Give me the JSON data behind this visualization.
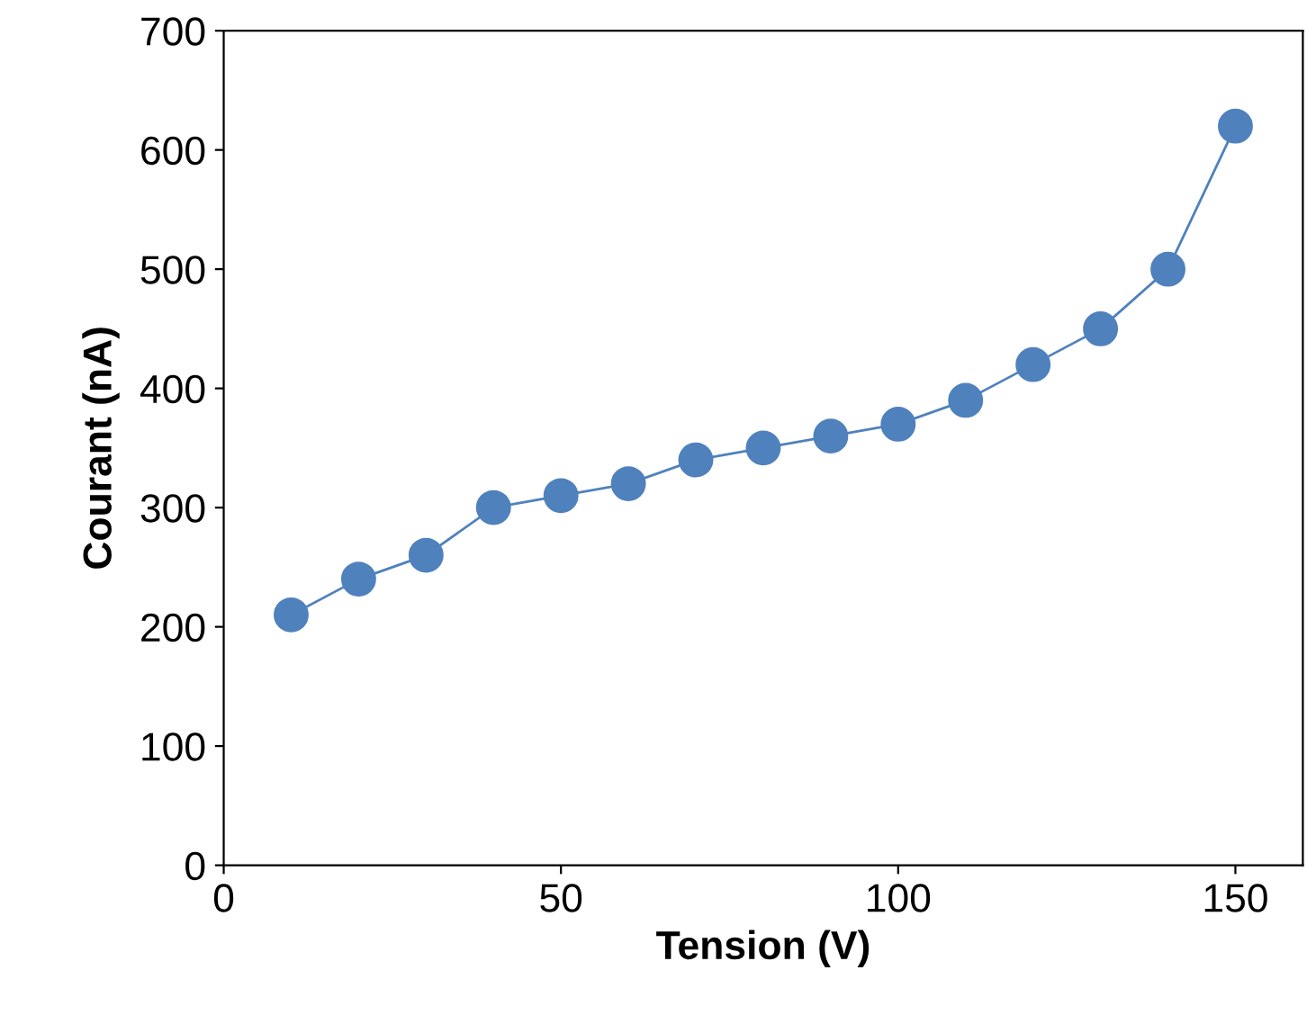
{
  "chart_data": {
    "type": "line",
    "xlabel": "Tension (V)",
    "ylabel": "Courant (nA)",
    "x": [
      10,
      20,
      30,
      40,
      50,
      60,
      70,
      80,
      90,
      100,
      110,
      120,
      130,
      140,
      150
    ],
    "series": [
      {
        "color": "#4f81bd",
        "values": [
          210,
          240,
          260,
          300,
          310,
          320,
          340,
          350,
          360,
          370,
          390,
          420,
          450,
          500,
          620
        ]
      }
    ],
    "xlim": [
      0,
      160
    ],
    "xticks": [
      0,
      50,
      100,
      150
    ],
    "ylim": [
      0,
      700
    ],
    "yticks": [
      0,
      100,
      200,
      300,
      400,
      500,
      600,
      700
    ],
    "marker": "circle",
    "line_style": "solid"
  }
}
